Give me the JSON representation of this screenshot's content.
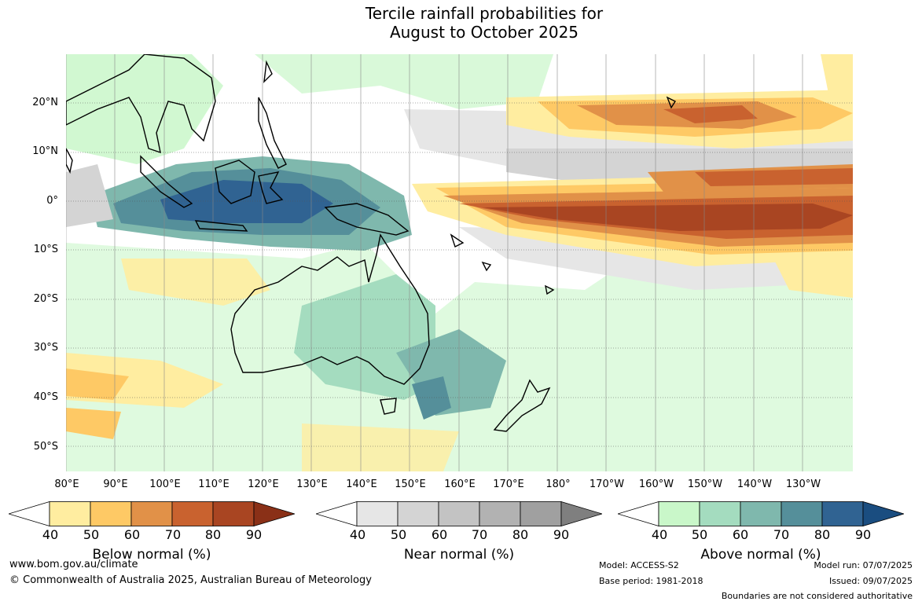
{
  "title_line1": "Tercile rainfall probabilities for",
  "title_line2": "August to October 2025",
  "lat_labels": [
    "20°N",
    "10°N",
    "0°",
    "10°S",
    "20°S",
    "30°S",
    "40°S",
    "50°S"
  ],
  "lon_labels": [
    "80°E",
    "90°E",
    "100°E",
    "110°E",
    "120°E",
    "130°E",
    "140°E",
    "150°E",
    "160°E",
    "170°E",
    "180°",
    "170°W",
    "160°W",
    "150°W",
    "140°W",
    "130°W"
  ],
  "colorbars": [
    {
      "title": "Below normal (%)",
      "ticks": [
        "40",
        "50",
        "60",
        "70",
        "80",
        "90"
      ],
      "colors": [
        "#ffffff",
        "#ffeda0",
        "#fec965",
        "#e19148",
        "#c9622f",
        "#a94522",
        "#8a3017"
      ]
    },
    {
      "title": "Near normal (%)",
      "ticks": [
        "40",
        "50",
        "60",
        "70",
        "80",
        "90"
      ],
      "colors": [
        "#ffffff",
        "#e6e6e6",
        "#d4d4d4",
        "#c3c3c3",
        "#b2b2b2",
        "#a0a0a0",
        "#7f7f7f"
      ]
    },
    {
      "title": "Above normal (%)",
      "ticks": [
        "40",
        "50",
        "60",
        "70",
        "80",
        "90"
      ],
      "colors": [
        "#ffffff",
        "#c9f7c9",
        "#a4dcbf",
        "#7fb8ad",
        "#558f9a",
        "#306392",
        "#1a4d80"
      ]
    }
  ],
  "footer": {
    "url": "www.bom.gov.au/climate",
    "copyright": "© Commonwealth of Australia 2025, Australian Bureau of Meteorology",
    "model": "Model: ACCESS-S2",
    "base_period": "Base period: 1981-2018",
    "model_run": "Model run: 07/07/2025",
    "issued": "Issued: 09/07/2025",
    "boundaries": "Boundaries are not considered authoritative"
  }
}
